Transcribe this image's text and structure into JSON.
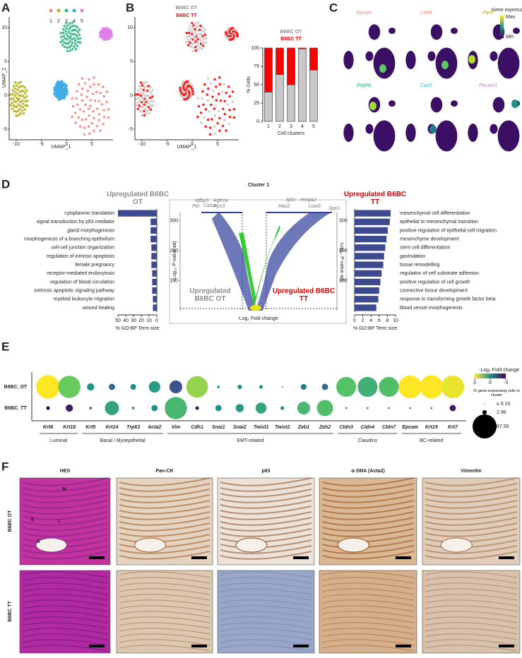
{
  "figure": {
    "panel_labels": [
      "A",
      "B",
      "C",
      "D",
      "E",
      "F"
    ],
    "panel_a": {
      "clusters": [
        {
          "label": "1",
          "color": "#f4847a"
        },
        {
          "label": "2",
          "color": "#b5ad1c"
        },
        {
          "label": "3",
          "color": "#23b37d"
        },
        {
          "label": "4",
          "color": "#2fa3e0"
        },
        {
          "label": "5",
          "color": "#e07be6"
        }
      ],
      "xlabel": "UMAP_1",
      "ylabel": "UMAP_2",
      "xticks": [
        -10,
        -5,
        0,
        5
      ],
      "yticks": [
        -5,
        0,
        5,
        10
      ]
    },
    "panel_c": {
      "genes": [
        {
          "label": "Epcam",
          "color": "#f4847a"
        },
        {
          "label": "Cd44",
          "color": "#f4847a"
        },
        {
          "label": "Ptprc",
          "color": "#b5ad1c"
        },
        {
          "label": "Pdgfrb",
          "color": "#23b37d"
        },
        {
          "label": "Csn3",
          "color": "#2fa3e0"
        },
        {
          "label": "Pecam1",
          "color": "#d070e0"
        }
      ],
      "colorbar": {
        "title": "Gene expression",
        "max": "Max",
        "min": "Min"
      }
    },
    "panel_d": {
      "title": "Cluster 1",
      "volcano": {
        "xlabel": "-Log₂ Fold change",
        "ylabel": "-Log₁₀ P-value adj",
        "yticks": [
          100,
          200,
          300
        ],
        "left_label": "Upregulated B6BC OT",
        "right_label": "Upregulated B6BC TT",
        "genes": [
          "Igfbp5",
          "Ptn",
          "Calca",
          "Agtr1a",
          "Rps3",
          "Has2",
          "Igf1r",
          "Hmga2",
          "Loxl3",
          "Spp1"
        ]
      }
    },
    "panel_e": {
      "color_title": "-Log₂ Fold change",
      "size_title": "% gene-expressing cells in cluster"
    },
    "panel_f": {
      "columns": [
        "HES",
        "Pan-CK",
        "p63",
        "α-SMA (Acta2)",
        "Vimentin"
      ],
      "rows": [
        "B6BC OT",
        "B6BC TT"
      ],
      "annotations": [
        "M",
        "E",
        "L",
        "S"
      ]
    }
  },
  "chart_data": [
    {
      "type": "bar",
      "stacked": true,
      "ylabel": "% Cells",
      "xlabel": "Cell clusters",
      "categories": [
        "1",
        "2",
        "3",
        "4",
        "5"
      ],
      "series": [
        {
          "name": "B6BC OT",
          "color": "#c8c8c8",
          "values": [
            40,
            64,
            50,
            99,
            70
          ]
        },
        {
          "name": "B6BC TT",
          "color": "#ff0000",
          "values": [
            60,
            36,
            50,
            1,
            30
          ]
        }
      ],
      "ylim": [
        0,
        100
      ],
      "yticks": [
        0,
        25,
        50,
        75,
        100
      ]
    },
    {
      "type": "hbar",
      "title": "Upregulated B6BC OT",
      "title_color": "#8c8c8c",
      "color": "#3d4a8f",
      "x_reversed": true,
      "categories": [
        "cytoplasmic translation",
        "signal transduction by p53 mediator",
        "gland morphogenesis",
        "morphogenesis of a branching epithelium",
        "cell-cell junction organization",
        "regulation of intrinsic apoptosis",
        "female pregnancy",
        "receptor-mediated endocytosis",
        "regulation of blood circulation",
        "extrinsic apoptotic signaling pathway",
        "myeloid leukocyte migration",
        "wound healing"
      ],
      "values": [
        50,
        8,
        8,
        8,
        7,
        7,
        7,
        6,
        6,
        6,
        5,
        5
      ],
      "xlim": [
        0,
        50
      ],
      "xticks": [
        0,
        10,
        20,
        30,
        40,
        50
      ],
      "xlabel": "% GO:BP Term size"
    },
    {
      "type": "hbar",
      "title": "Upregulated B6BC TT",
      "title_color": "#e00000",
      "color": "#3d4a8f",
      "x_reversed": false,
      "categories": [
        "mesenchymal cell differentiation",
        "epithelial to mesenchymal transition",
        "positive regulation of epithelial cell migration",
        "mesenchyme development",
        "stem cell differentiation",
        "gastrulation",
        "tissue remodelling",
        "regulation of cell substrate adhesion",
        "positive regulation of cell growth",
        "connective tissue development",
        "response to transforming growth factor beta",
        "blood vessel morphogenesis"
      ],
      "values": [
        8.8,
        8.6,
        8.1,
        7.8,
        7.5,
        7.2,
        7,
        6.6,
        6.3,
        6,
        5.8,
        5.3
      ],
      "xlim": [
        0,
        10
      ],
      "xticks": [
        0,
        2,
        4,
        6,
        8,
        10
      ],
      "xlabel": "% GO:BP Term size"
    },
    {
      "type": "dot",
      "categories": [
        "Krt8",
        "Krt18",
        "Krt5",
        "Krt14",
        "Trp63",
        "Acta2",
        "Vim",
        "Cdh1",
        "Snai1",
        "Snai2",
        "Twist1",
        "Twist2",
        "Zeb1",
        "Zeb2",
        "Cldn3",
        "Cldn4",
        "Cldn7",
        "Epcam",
        "Krt19",
        "Krt7"
      ],
      "groups": [
        "Luminal",
        "Basal / Myoepithelial",
        "EMT-related",
        "Claudins",
        "BC-related"
      ],
      "series": [
        {
          "name": "B6BC_OT",
          "size": [
            85,
            75,
            8,
            6,
            5,
            20,
            25,
            70,
            1,
            3,
            2,
            0.3,
            5,
            6,
            60,
            60,
            60,
            80,
            82,
            78
          ],
          "log2fc": [
            3,
            1.6,
            0,
            -1,
            0,
            0.3,
            -1.5,
            2,
            0,
            0,
            0,
            0,
            -0.5,
            -1,
            1.3,
            0.8,
            1.2,
            3,
            3,
            2.8
          ]
        },
        {
          "name": "B6BC_TT",
          "size": [
            2,
            8,
            1,
            30,
            1,
            6,
            75,
            2,
            6,
            10,
            18,
            2,
            25,
            40,
            0.5,
            0.5,
            0.5,
            0.5,
            0.5,
            6
          ],
          "log2fc": [
            -3,
            -2.5,
            -1,
            0.5,
            0,
            0,
            1,
            -2.5,
            0,
            0.2,
            0.5,
            0,
            1,
            1.2,
            -1,
            -1,
            -1,
            -1,
            -1,
            -2.5
          ]
        }
      ],
      "color_ticks": [
        3,
        0,
        -3
      ],
      "color_range": [
        -3,
        3
      ],
      "colors": [
        "#440154",
        "#3b528b",
        "#21918c",
        "#5ec962",
        "#fde725"
      ],
      "size_legend": [
        {
          "value": 0.1,
          "label": "≤ 0.10"
        },
        {
          "value": 2.96,
          "label": "2.96"
        },
        {
          "value": 87.5,
          "label": "87.50"
        }
      ],
      "size_max": 87.5
    }
  ]
}
